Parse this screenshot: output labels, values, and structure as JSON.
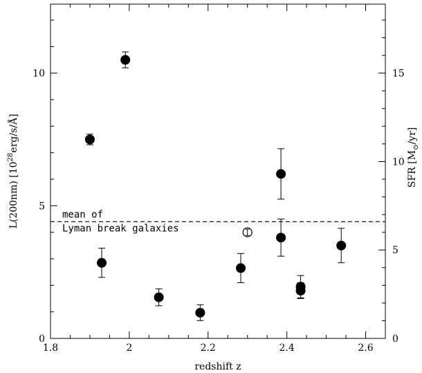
{
  "chart_data": {
    "type": "scatter",
    "xlabel": "redshift z",
    "ylabel_left": {
      "prefix": "L(200nm) [10",
      "sup": "28",
      "suffix": "erg/s/Å]"
    },
    "ylabel_right": {
      "prefix": "SFR [M",
      "sub": "⊙",
      "suffix": "/yr]"
    },
    "xlim": [
      1.8,
      2.65
    ],
    "ylim_left": [
      0,
      12.6
    ],
    "ylim_right": [
      0,
      18.9
    ],
    "x_ticks": [
      {
        "value": 1.8,
        "label": "1.8"
      },
      {
        "value": 2.0,
        "label": "2"
      },
      {
        "value": 2.2,
        "label": "2.2"
      },
      {
        "value": 2.4,
        "label": "2.4"
      },
      {
        "value": 2.6,
        "label": "2.6"
      }
    ],
    "y_ticks_left": [
      {
        "value": 0,
        "label": "0"
      },
      {
        "value": 5,
        "label": "5"
      },
      {
        "value": 10,
        "label": "10"
      }
    ],
    "y_ticks_right": [
      {
        "value": 0,
        "label": "0"
      },
      {
        "value": 5,
        "label": "5"
      },
      {
        "value": 10,
        "label": "10"
      },
      {
        "value": 15,
        "label": "15"
      }
    ],
    "reference_line": {
      "y": 4.4,
      "label_line1": "mean of",
      "label_line2": "Lyman break galaxies"
    },
    "series": [
      {
        "marker": "filled-circle",
        "points": [
          {
            "x": 1.9,
            "y": 7.5,
            "err": 0.2
          },
          {
            "x": 1.93,
            "y": 2.85,
            "err": 0.55
          },
          {
            "x": 1.99,
            "y": 10.5,
            "err": 0.3
          },
          {
            "x": 2.075,
            "y": 1.55,
            "err": 0.32
          },
          {
            "x": 2.18,
            "y": 0.97,
            "err": 0.3
          },
          {
            "x": 2.283,
            "y": 2.65,
            "err": 0.55
          },
          {
            "x": 2.385,
            "y": 6.2,
            "err": 0.95
          },
          {
            "x": 2.385,
            "y": 3.8,
            "err": 0.7
          },
          {
            "x": 2.435,
            "y": 1.95,
            "err": 0.42
          },
          {
            "x": 2.435,
            "y": 1.8,
            "err": 0.3
          },
          {
            "x": 2.538,
            "y": 3.5,
            "err": 0.65
          }
        ]
      },
      {
        "marker": "open-circle",
        "points": [
          {
            "x": 2.3,
            "y": 4.0,
            "err": 0.12
          }
        ]
      }
    ]
  }
}
